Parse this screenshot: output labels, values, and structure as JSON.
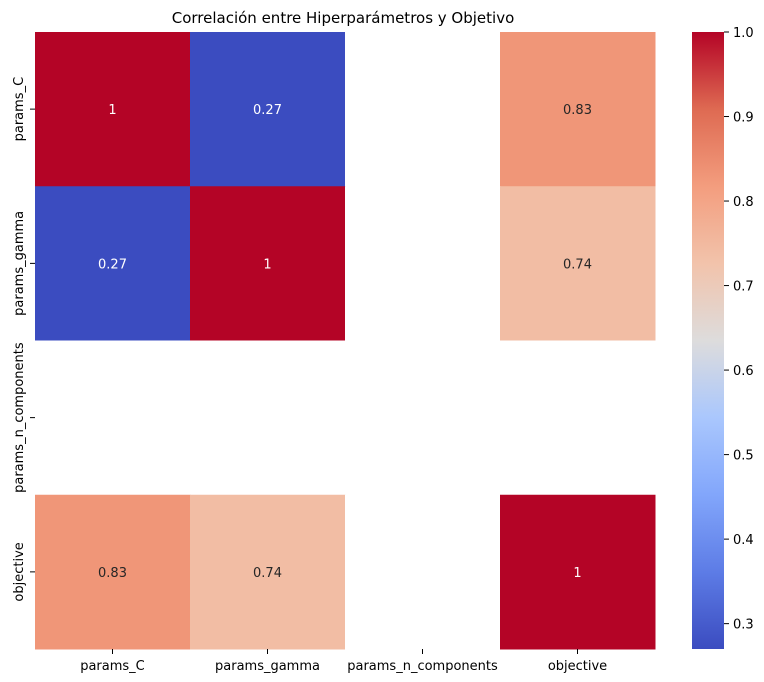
{
  "chart_data": {
    "type": "heatmap",
    "title": "Correlación entre Hiperparámetros y Objetivo",
    "x_categories": [
      "params_C",
      "params_gamma",
      "params_n_components",
      "objective"
    ],
    "y_categories": [
      "params_C",
      "params_gamma",
      "params_n_components",
      "objective"
    ],
    "values": [
      [
        1,
        0.27,
        null,
        0.83
      ],
      [
        0.27,
        1,
        null,
        0.74
      ],
      [
        null,
        null,
        null,
        null
      ],
      [
        0.83,
        0.74,
        null,
        1
      ]
    ],
    "annotations": [
      [
        "1",
        "0.27",
        "",
        "0.83"
      ],
      [
        "0.27",
        "1",
        "",
        "0.74"
      ],
      [
        "",
        "",
        "",
        ""
      ],
      [
        "0.83",
        "0.74",
        "",
        "1"
      ]
    ],
    "colormap": "coolwarm",
    "colorbar": {
      "range": [
        0.27,
        1.0
      ],
      "ticks": [
        "0.3",
        "0.4",
        "0.5",
        "0.6",
        "0.7",
        "0.8",
        "0.9",
        "1.0"
      ],
      "tick_values": [
        0.3,
        0.4,
        0.5,
        0.6,
        0.7,
        0.8,
        0.9,
        1.0
      ]
    },
    "missing_color": "#ffffff"
  }
}
